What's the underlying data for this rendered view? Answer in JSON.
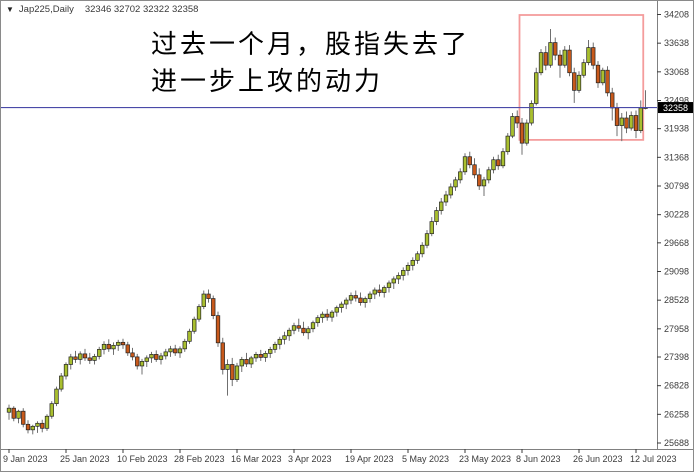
{
  "window": {
    "dropdown_icon": "▼",
    "title_symbol": "Jap225,Daily",
    "title_ohlc": "32346 32702 32322 32358"
  },
  "annotation": {
    "line1": "过去一个月，股指失去了",
    "line2": "进一步上攻的动力"
  },
  "colors": {
    "bull_body": "#a9bf2f",
    "bear_body": "#c8591b",
    "candle_border": "#222222",
    "wick": "#6f6f6f",
    "current_price_line": "#4a4aa8",
    "highlight_box": "#f49c9c",
    "axis_text": "#3b3b3b",
    "frame": "#808080",
    "price_tag_bg": "#000000",
    "price_tag_text": "#ffffff"
  },
  "chart_data": {
    "type": "candlestick",
    "symbol": "Jap225",
    "period": "Daily",
    "title": "Jap225,Daily",
    "last_bar_ohlc": {
      "open": 32346,
      "high": 32702,
      "low": 32322,
      "close": 32358
    },
    "current_price": 32358,
    "price_tag_label": "32358",
    "grid": false,
    "y_axis_side": "right",
    "y_ticks": [
      34208,
      33638,
      33068,
      32498,
      31938,
      31368,
      30798,
      30228,
      29668,
      29098,
      28528,
      27958,
      27398,
      26828,
      26258,
      25688
    ],
    "x_ticks": [
      {
        "bar": 0,
        "label": "9 Jan 2023"
      },
      {
        "bar": 12,
        "label": "25 Jan 2023"
      },
      {
        "bar": 24,
        "label": "10 Feb 2023"
      },
      {
        "bar": 36,
        "label": "28 Feb 2023"
      },
      {
        "bar": 48,
        "label": "16 Mar 2023"
      },
      {
        "bar": 60,
        "label": "3 Apr 2023"
      },
      {
        "bar": 72,
        "label": "19 Apr 2023"
      },
      {
        "bar": 84,
        "label": "5 May 2023"
      },
      {
        "bar": 96,
        "label": "23 May 2023"
      },
      {
        "bar": 108,
        "label": "8 Jun 2023"
      },
      {
        "bar": 120,
        "label": "26 Jun 2023"
      },
      {
        "bar": 132,
        "label": "12 Jul 2023"
      }
    ],
    "highlight_box": {
      "start_bar": 108,
      "end_bar": 133,
      "top_price": 34198,
      "bottom_price": 31715
    },
    "candles": [
      [
        26300,
        26450,
        26150,
        26380
      ],
      [
        26380,
        26420,
        26120,
        26180
      ],
      [
        26180,
        26350,
        26080,
        26320
      ],
      [
        26320,
        26380,
        26000,
        26060
      ],
      [
        26060,
        26140,
        25880,
        25950
      ],
      [
        25950,
        26050,
        25860,
        26020
      ],
      [
        26020,
        26120,
        25890,
        26080
      ],
      [
        26080,
        26150,
        25900,
        25980
      ],
      [
        25980,
        26260,
        25930,
        26220
      ],
      [
        26220,
        26520,
        26170,
        26470
      ],
      [
        26470,
        26810,
        26420,
        26760
      ],
      [
        26760,
        27080,
        26710,
        27020
      ],
      [
        27020,
        27290,
        26950,
        27250
      ],
      [
        27250,
        27460,
        27150,
        27400
      ],
      [
        27400,
        27520,
        27280,
        27350
      ],
      [
        27350,
        27510,
        27250,
        27460
      ],
      [
        27460,
        27560,
        27320,
        27380
      ],
      [
        27380,
        27480,
        27260,
        27330
      ],
      [
        27330,
        27460,
        27250,
        27410
      ],
      [
        27410,
        27600,
        27350,
        27550
      ],
      [
        27550,
        27710,
        27450,
        27650
      ],
      [
        27650,
        27750,
        27500,
        27560
      ],
      [
        27560,
        27690,
        27440,
        27630
      ],
      [
        27630,
        27740,
        27520,
        27690
      ],
      [
        27690,
        27760,
        27560,
        27640
      ],
      [
        27640,
        27700,
        27420,
        27480
      ],
      [
        27480,
        27580,
        27330,
        27400
      ],
      [
        27400,
        27460,
        27150,
        27220
      ],
      [
        27220,
        27360,
        27050,
        27310
      ],
      [
        27310,
        27430,
        27200,
        27380
      ],
      [
        27380,
        27500,
        27280,
        27450
      ],
      [
        27450,
        27530,
        27300,
        27350
      ],
      [
        27350,
        27480,
        27250,
        27420
      ],
      [
        27420,
        27560,
        27350,
        27500
      ],
      [
        27500,
        27620,
        27400,
        27560
      ],
      [
        27560,
        27640,
        27420,
        27480
      ],
      [
        27480,
        27610,
        27380,
        27560
      ],
      [
        27560,
        27760,
        27500,
        27710
      ],
      [
        27710,
        27960,
        27660,
        27910
      ],
      [
        27910,
        28200,
        27860,
        28150
      ],
      [
        28150,
        28450,
        28100,
        28400
      ],
      [
        28400,
        28720,
        28350,
        28650
      ],
      [
        28650,
        28740,
        28480,
        28560
      ],
      [
        28560,
        28620,
        28150,
        28220
      ],
      [
        28220,
        28300,
        27600,
        27680
      ],
      [
        27680,
        27780,
        27050,
        27150
      ],
      [
        27150,
        27350,
        26630,
        27250
      ],
      [
        27250,
        27380,
        26820,
        26950
      ],
      [
        26950,
        27280,
        26900,
        27220
      ],
      [
        27220,
        27400,
        27100,
        27350
      ],
      [
        27350,
        27480,
        27200,
        27260
      ],
      [
        27260,
        27420,
        27180,
        27380
      ],
      [
        27380,
        27500,
        27300,
        27450
      ],
      [
        27450,
        27540,
        27320,
        27390
      ],
      [
        27390,
        27520,
        27300,
        27470
      ],
      [
        27470,
        27600,
        27380,
        27550
      ],
      [
        27550,
        27700,
        27480,
        27650
      ],
      [
        27650,
        27800,
        27550,
        27750
      ],
      [
        27750,
        27900,
        27650,
        27820
      ],
      [
        27820,
        27980,
        27720,
        27930
      ],
      [
        27930,
        28080,
        27850,
        28020
      ],
      [
        28020,
        28160,
        27900,
        27970
      ],
      [
        27970,
        28100,
        27820,
        27880
      ],
      [
        27880,
        28010,
        27750,
        27960
      ],
      [
        27960,
        28120,
        27890,
        28080
      ],
      [
        28080,
        28230,
        28000,
        28180
      ],
      [
        28180,
        28300,
        28080,
        28250
      ],
      [
        28250,
        28350,
        28120,
        28190
      ],
      [
        28190,
        28330,
        28100,
        28290
      ],
      [
        28290,
        28420,
        28200,
        28380
      ],
      [
        28380,
        28500,
        28280,
        28450
      ],
      [
        28450,
        28580,
        28350,
        28530
      ],
      [
        28530,
        28680,
        28450,
        28620
      ],
      [
        28620,
        28720,
        28500,
        28570
      ],
      [
        28570,
        28680,
        28420,
        28480
      ],
      [
        28480,
        28600,
        28380,
        28560
      ],
      [
        28560,
        28700,
        28480,
        28650
      ],
      [
        28650,
        28780,
        28550,
        28730
      ],
      [
        28730,
        28840,
        28600,
        28680
      ],
      [
        28680,
        28820,
        28580,
        28780
      ],
      [
        28780,
        28920,
        28680,
        28870
      ],
      [
        28870,
        29000,
        28750,
        28950
      ],
      [
        28950,
        29080,
        28850,
        29020
      ],
      [
        29020,
        29180,
        28920,
        29120
      ],
      [
        29120,
        29280,
        29020,
        29220
      ],
      [
        29220,
        29380,
        29120,
        29320
      ],
      [
        29320,
        29500,
        29250,
        29450
      ],
      [
        29450,
        29680,
        29380,
        29620
      ],
      [
        29620,
        29920,
        29560,
        29850
      ],
      [
        29850,
        30180,
        29800,
        30090
      ],
      [
        30090,
        30380,
        30020,
        30310
      ],
      [
        30310,
        30560,
        30230,
        30480
      ],
      [
        30480,
        30700,
        30400,
        30620
      ],
      [
        30620,
        30850,
        30550,
        30780
      ],
      [
        30780,
        30980,
        30700,
        30920
      ],
      [
        30920,
        31150,
        30850,
        31080
      ],
      [
        31080,
        31450,
        31020,
        31380
      ],
      [
        31380,
        31480,
        31150,
        31220
      ],
      [
        31220,
        31350,
        30950,
        31020
      ],
      [
        31020,
        31150,
        30720,
        30800
      ],
      [
        30800,
        30980,
        30600,
        30920
      ],
      [
        30920,
        31180,
        30850,
        31120
      ],
      [
        31120,
        31380,
        31050,
        31320
      ],
      [
        31320,
        31420,
        31120,
        31200
      ],
      [
        31200,
        31550,
        31150,
        31480
      ],
      [
        31480,
        31850,
        31420,
        31790
      ],
      [
        31790,
        32250,
        31750,
        32180
      ],
      [
        32180,
        32300,
        31950,
        32050
      ],
      [
        32050,
        32150,
        31420,
        31650
      ],
      [
        31650,
        32120,
        31600,
        32050
      ],
      [
        32050,
        32500,
        32000,
        32440
      ],
      [
        32440,
        33150,
        32400,
        33050
      ],
      [
        33050,
        33520,
        33000,
        33450
      ],
      [
        33450,
        33580,
        33100,
        33200
      ],
      [
        33200,
        33920,
        33150,
        33650
      ],
      [
        33650,
        33750,
        33300,
        33400
      ],
      [
        33400,
        33500,
        32950,
        33200
      ],
      [
        33200,
        33580,
        33150,
        33500
      ],
      [
        33500,
        33600,
        32980,
        33050
      ],
      [
        33050,
        33150,
        32450,
        32700
      ],
      [
        32700,
        33080,
        32650,
        33000
      ],
      [
        33000,
        33320,
        32950,
        33250
      ],
      [
        33250,
        33700,
        33200,
        33550
      ],
      [
        33550,
        33650,
        33120,
        33200
      ],
      [
        33200,
        33280,
        32750,
        32850
      ],
      [
        32850,
        33150,
        32800,
        33100
      ],
      [
        33100,
        33180,
        32580,
        32650
      ],
      [
        32650,
        32750,
        32100,
        32350
      ],
      [
        32350,
        32450,
        31790,
        32000
      ],
      [
        32000,
        32250,
        31690,
        32150
      ],
      [
        32150,
        32280,
        31850,
        31950
      ],
      [
        31950,
        32280,
        31900,
        32200
      ],
      [
        32200,
        32300,
        31750,
        31900
      ],
      [
        31900,
        32500,
        31850,
        32350
      ],
      [
        32346,
        32702,
        32322,
        32358
      ]
    ]
  }
}
